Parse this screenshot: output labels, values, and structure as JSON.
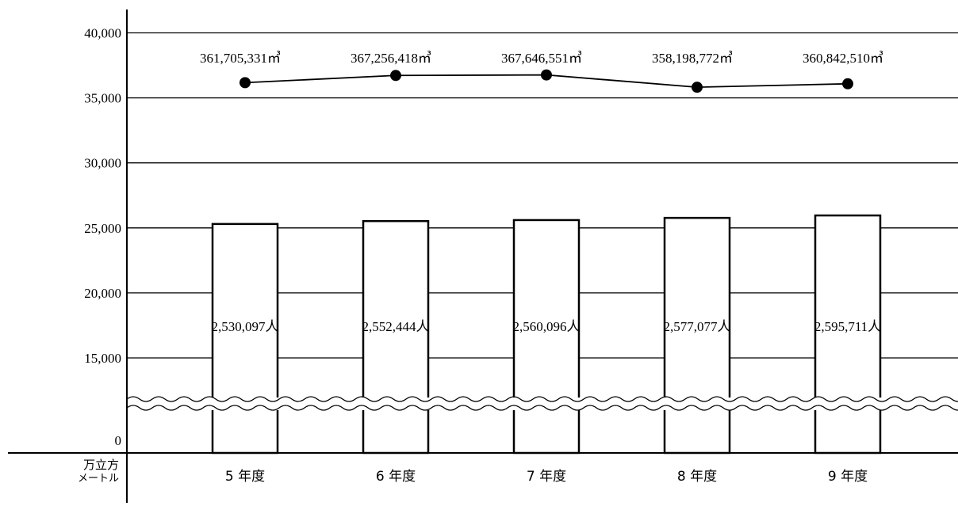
{
  "chart_data": {
    "type": "bar",
    "categories": [
      "5 年度",
      "6 年度",
      "7 年度",
      "8 年度",
      "9 年度"
    ],
    "series": [
      {
        "kind": "bar",
        "values": [
          2530097,
          2552444,
          2560096,
          2577077,
          2595711
        ],
        "labels": [
          "2,530,097人",
          "2,552,444人",
          "2,560,096人",
          "2,577,077人",
          "2,595,711人"
        ]
      },
      {
        "kind": "line",
        "values": [
          361705331,
          367256418,
          367646551,
          358198772,
          360842510
        ],
        "labels": [
          "361,705,331㎥",
          "367,256,418㎥",
          "367,646,551㎥",
          "358,198,772㎥",
          "360,842,510㎥"
        ]
      }
    ],
    "y_ticks": [
      "0",
      "15,000",
      "20,000",
      "25,000",
      "30,000",
      "35,000",
      "40,000"
    ],
    "y_unit": [
      "万立方",
      "メートル"
    ],
    "ylim": [
      0,
      40000
    ],
    "axis_break": "wavy",
    "grid": true
  }
}
